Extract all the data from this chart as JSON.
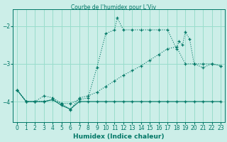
{
  "title": "Courbe de l'humidex pour L'Viv",
  "xlabel": "Humidex (Indice chaleur)",
  "background_color": "#cceee8",
  "grid_color": "#99ddcc",
  "line_color": "#007766",
  "xlim": [
    -0.5,
    23.5
  ],
  "ylim": [
    -4.55,
    -1.55
  ],
  "yticks": [
    -4,
    -3,
    -2
  ],
  "xticks": [
    0,
    1,
    2,
    3,
    4,
    5,
    6,
    7,
    8,
    9,
    10,
    11,
    12,
    13,
    14,
    15,
    16,
    17,
    18,
    19,
    20,
    21,
    22,
    23
  ],
  "s1_x": [
    0,
    1,
    2,
    3,
    4,
    5,
    6,
    7,
    8,
    9,
    10,
    11,
    11.3,
    12,
    13,
    14,
    15,
    16,
    17,
    18,
    18.3,
    18.7,
    19,
    19.5,
    20,
    21,
    22,
    23
  ],
  "s1_y": [
    -3.7,
    -4.0,
    -4.0,
    -3.85,
    -3.9,
    -4.05,
    -4.05,
    -3.95,
    -3.9,
    -3.1,
    -2.2,
    -2.1,
    -1.78,
    -2.1,
    -2.1,
    -2.1,
    -2.1,
    -2.1,
    -2.1,
    -2.6,
    -2.4,
    -2.5,
    -2.15,
    -2.35,
    -3.0,
    -3.1,
    -3.0,
    -3.05
  ],
  "s2_x": [
    0,
    1,
    2,
    3,
    4,
    5,
    6,
    7,
    8,
    9,
    10,
    11,
    12,
    13,
    14,
    15,
    16,
    17,
    18,
    19,
    20,
    21,
    22,
    23
  ],
  "s2_y": [
    -3.7,
    -4.0,
    -4.0,
    -4.0,
    -3.95,
    -4.1,
    -4.2,
    -4.0,
    -4.0,
    -4.0,
    -4.0,
    -4.0,
    -4.0,
    -4.0,
    -4.0,
    -4.0,
    -4.0,
    -4.0,
    -4.0,
    -4.0,
    -4.0,
    -4.0,
    -4.0,
    -4.0
  ],
  "s3_x": [
    0,
    1,
    2,
    3,
    4,
    5,
    6,
    7,
    8,
    9,
    10,
    11,
    12,
    13,
    14,
    15,
    16,
    17,
    18,
    19,
    20,
    21,
    22,
    23
  ],
  "s3_y": [
    -3.7,
    -4.0,
    -4.0,
    -4.0,
    -3.95,
    -4.05,
    -4.22,
    -3.9,
    -3.85,
    -3.75,
    -3.6,
    -3.45,
    -3.3,
    -3.18,
    -3.05,
    -2.9,
    -2.75,
    -2.6,
    -2.55,
    -3.0,
    -3.0,
    -3.0,
    -3.0,
    -3.05
  ]
}
